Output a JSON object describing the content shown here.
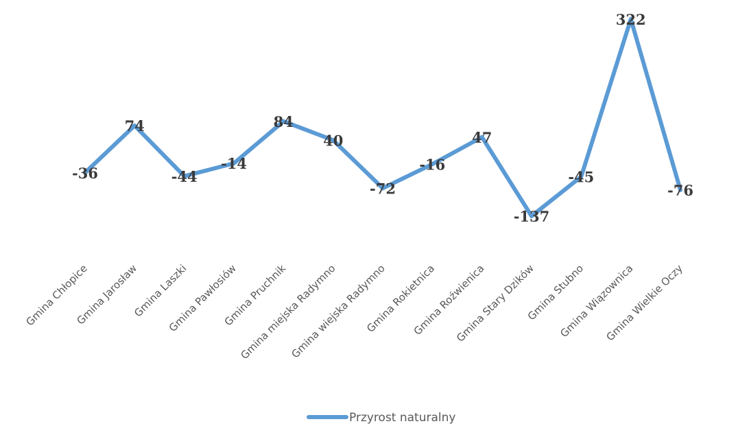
{
  "chart_data": {
    "type": "line",
    "categories": [
      "Gmina Chłopice",
      "Gmina Jarosław",
      "Gmina Laszki",
      "Gmina Pawłosiów",
      "Gmina Pruchnik",
      "Gmina miejska Radymno",
      "Gmina wiejska Radymno",
      "Gmina Rokietnica",
      "Gmina Roźwienica",
      "Gmina Stary Dzików",
      "Gmina Stubno",
      "Gmina Wiązownica",
      "Gmina Wielkie Oczy"
    ],
    "series": [
      {
        "name": "Przyrost naturalny",
        "values": [
          -36,
          74,
          -44,
          -14,
          84,
          40,
          -72,
          -16,
          47,
          -137,
          -45,
          322,
          -76
        ],
        "color": "#5b9bd5",
        "labels": [
          "-36",
          "74",
          "-44",
          "-14",
          "84",
          "40",
          "-72",
          "-16",
          "47",
          "-137",
          "-45",
          "322",
          "-76"
        ]
      }
    ],
    "ylim": [
      -137,
      322
    ],
    "grid": false,
    "legend_position": "bottom"
  }
}
